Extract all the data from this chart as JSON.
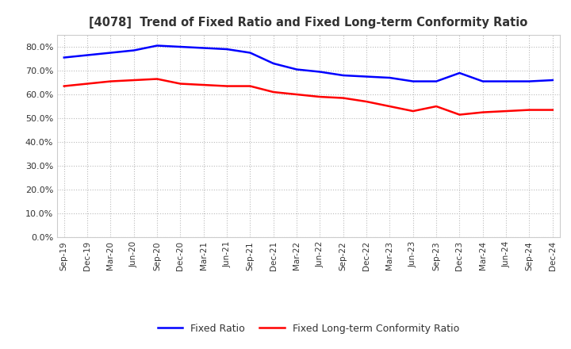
{
  "title": "[4078]  Trend of Fixed Ratio and Fixed Long-term Conformity Ratio",
  "x_labels": [
    "Sep-19",
    "Dec-19",
    "Mar-20",
    "Jun-20",
    "Sep-20",
    "Dec-20",
    "Mar-21",
    "Jun-21",
    "Sep-21",
    "Dec-21",
    "Mar-22",
    "Jun-22",
    "Sep-22",
    "Dec-22",
    "Mar-23",
    "Jun-23",
    "Sep-23",
    "Dec-23",
    "Mar-24",
    "Jun-24",
    "Sep-24",
    "Dec-24"
  ],
  "fixed_ratio": [
    75.5,
    76.5,
    77.5,
    78.5,
    80.5,
    80.0,
    79.5,
    79.0,
    77.5,
    73.0,
    70.5,
    69.5,
    68.0,
    67.5,
    67.0,
    65.5,
    65.5,
    69.0,
    65.5,
    65.5,
    65.5,
    66.0
  ],
  "fixed_lt_ratio": [
    63.5,
    64.5,
    65.5,
    66.0,
    66.5,
    64.5,
    64.0,
    63.5,
    63.5,
    61.0,
    60.0,
    59.0,
    58.5,
    57.0,
    55.0,
    53.0,
    55.0,
    51.5,
    52.5,
    53.0,
    53.5,
    53.5
  ],
  "ylim": [
    0,
    85
  ],
  "yticks": [
    0,
    10,
    20,
    30,
    40,
    50,
    60,
    70,
    80
  ],
  "fixed_ratio_color": "#0000ff",
  "fixed_lt_ratio_color": "#ff0000",
  "legend_fixed": "Fixed Ratio",
  "legend_lt": "Fixed Long-term Conformity Ratio",
  "grid_color": "#bbbbbb",
  "background_color": "#ffffff",
  "plot_bg_color": "#ffffff",
  "title_color": "#333333"
}
